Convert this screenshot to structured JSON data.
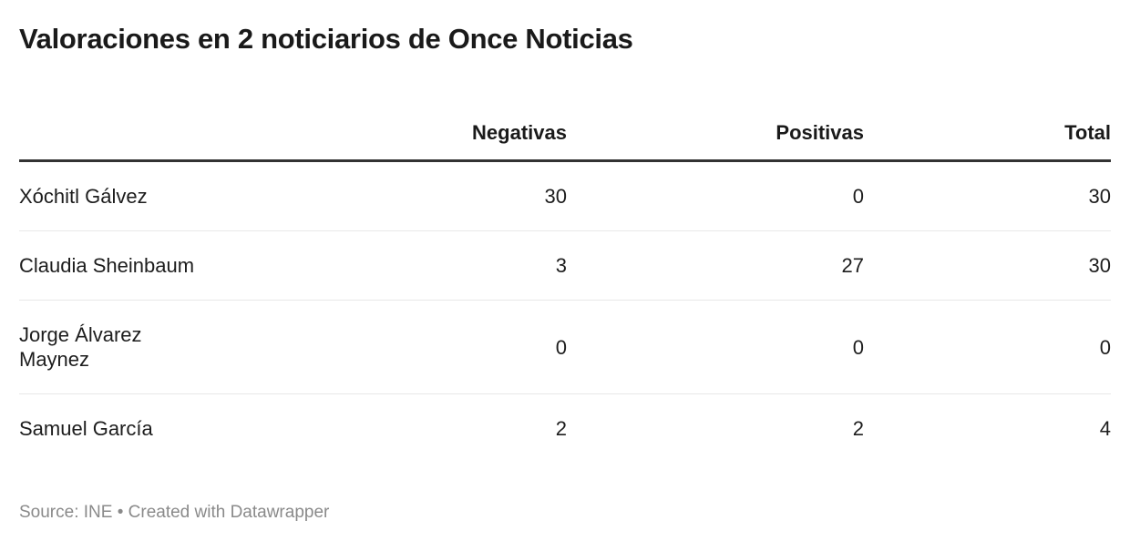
{
  "title": "Valoraciones en 2 noticiarios de Once Noticias",
  "table": {
    "columns": {
      "name": "",
      "negativas": "Negativas",
      "positivas": "Positivas",
      "total": "Total"
    },
    "rows": [
      {
        "name": "Xóchitl Gálvez",
        "negativas": "30",
        "positivas": "0",
        "total": "30"
      },
      {
        "name": "Claudia Sheinbaum",
        "negativas": "3",
        "positivas": "27",
        "total": "30"
      },
      {
        "name": "Jorge Álvarez\nMaynez",
        "negativas": "0",
        "positivas": "0",
        "total": "0"
      },
      {
        "name": "Samuel García",
        "negativas": "2",
        "positivas": "2",
        "total": "4"
      }
    ]
  },
  "footer": {
    "text": "Source: INE • Created with Datawrapper"
  },
  "colors": {
    "title_text": "#1a1a1a",
    "body_text": "#1d1d1d",
    "header_rule": "#333333",
    "row_divider": "#e8e8e8",
    "footer_text": "#8a8a8a",
    "background": "#ffffff"
  },
  "chart_data": {
    "type": "table",
    "title": "Valoraciones en 2 noticiarios de Once Noticias",
    "categories": [
      "Xóchitl Gálvez",
      "Claudia Sheinbaum",
      "Jorge Álvarez Maynez",
      "Samuel García"
    ],
    "series": [
      {
        "name": "Negativas",
        "values": [
          30,
          3,
          0,
          2
        ]
      },
      {
        "name": "Positivas",
        "values": [
          0,
          27,
          0,
          2
        ]
      },
      {
        "name": "Total",
        "values": [
          30,
          30,
          0,
          4
        ]
      }
    ],
    "source": "INE",
    "credit": "Created with Datawrapper",
    "layout_hints": {
      "numeric_columns_align": "right",
      "header_rule": "thick-dark",
      "row_dividers": "light-gray",
      "grid": "horizontal-only"
    }
  }
}
